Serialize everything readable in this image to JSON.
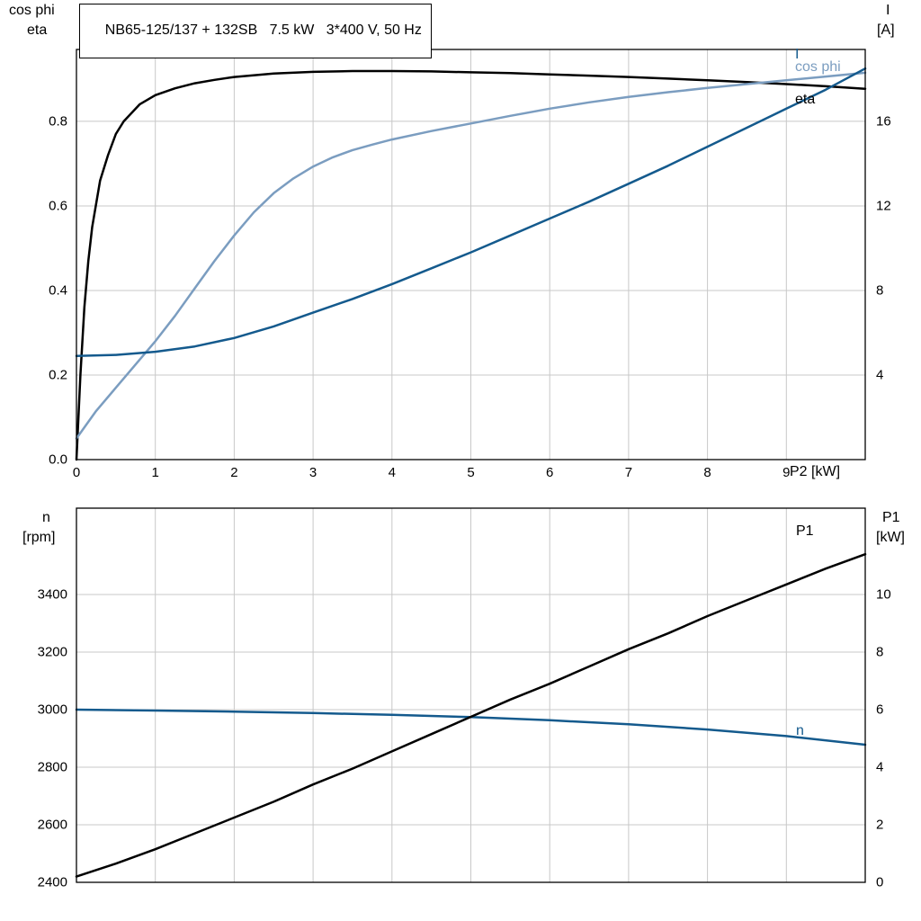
{
  "colors": {
    "grid": "#c8c8c8",
    "axis": "#000000",
    "background": "#ffffff"
  },
  "chart_data": [
    {
      "type": "line",
      "title": "NB65-125/137 + 132SB   7.5 kW   3*400 V, 50 Hz",
      "x_axis": {
        "title": "P2 [kW]",
        "range": [
          0,
          10
        ],
        "ticks": [
          [
            0,
            "0"
          ],
          [
            1,
            "1"
          ],
          [
            2,
            "2"
          ],
          [
            3,
            "3"
          ],
          [
            4,
            "4"
          ],
          [
            5,
            "5"
          ],
          [
            6,
            "6"
          ],
          [
            7,
            "7"
          ],
          [
            8,
            "8"
          ],
          [
            9,
            "9"
          ]
        ],
        "gridlines": [
          1,
          2,
          3,
          4,
          5,
          6,
          7,
          8,
          9
        ]
      },
      "left_axis": {
        "title": [
          "cos phi",
          "eta"
        ],
        "range": [
          0,
          0.97
        ],
        "ticks": [
          [
            0,
            "0.0"
          ],
          [
            0.2,
            "0.2"
          ],
          [
            0.4,
            "0.4"
          ],
          [
            0.6,
            "0.6"
          ],
          [
            0.8,
            "0.8"
          ]
        ]
      },
      "right_axis": {
        "title": [
          "I",
          "[A]"
        ],
        "range": [
          0,
          19.4
        ],
        "ticks": [
          [
            4,
            "4"
          ],
          [
            8,
            "8"
          ],
          [
            12,
            "12"
          ],
          [
            16,
            "16"
          ]
        ]
      },
      "series": [
        {
          "name": "eta",
          "axis": "left",
          "color": "#000000",
          "points": [
            [
              0,
              0
            ],
            [
              0.05,
              0.2
            ],
            [
              0.1,
              0.36
            ],
            [
              0.15,
              0.47
            ],
            [
              0.2,
              0.55
            ],
            [
              0.3,
              0.66
            ],
            [
              0.4,
              0.72
            ],
            [
              0.5,
              0.77
            ],
            [
              0.6,
              0.8
            ],
            [
              0.8,
              0.84
            ],
            [
              1,
              0.862
            ],
            [
              1.25,
              0.878
            ],
            [
              1.5,
              0.89
            ],
            [
              1.75,
              0.898
            ],
            [
              2,
              0.905
            ],
            [
              2.5,
              0.913
            ],
            [
              3,
              0.917
            ],
            [
              3.5,
              0.919
            ],
            [
              4,
              0.919
            ],
            [
              4.5,
              0.918
            ],
            [
              5,
              0.916
            ],
            [
              5.5,
              0.914
            ],
            [
              6,
              0.911
            ],
            [
              6.5,
              0.908
            ],
            [
              7,
              0.905
            ],
            [
              7.5,
              0.901
            ],
            [
              8,
              0.897
            ],
            [
              8.5,
              0.893
            ],
            [
              9,
              0.888
            ],
            [
              9.5,
              0.883
            ],
            [
              10,
              0.877
            ]
          ]
        },
        {
          "name": "cos phi",
          "axis": "left",
          "color": "#7b9dc0",
          "points": [
            [
              0,
              0.05
            ],
            [
              0.25,
              0.115
            ],
            [
              0.5,
              0.17
            ],
            [
              0.75,
              0.225
            ],
            [
              1,
              0.28
            ],
            [
              1.25,
              0.34
            ],
            [
              1.5,
              0.405
            ],
            [
              1.75,
              0.47
            ],
            [
              2,
              0.53
            ],
            [
              2.25,
              0.585
            ],
            [
              2.5,
              0.63
            ],
            [
              2.75,
              0.665
            ],
            [
              3,
              0.693
            ],
            [
              3.25,
              0.715
            ],
            [
              3.5,
              0.732
            ],
            [
              3.75,
              0.745
            ],
            [
              4,
              0.757
            ],
            [
              4.5,
              0.777
            ],
            [
              5,
              0.795
            ],
            [
              5.5,
              0.813
            ],
            [
              6,
              0.83
            ],
            [
              6.5,
              0.845
            ],
            [
              7,
              0.858
            ],
            [
              7.5,
              0.869
            ],
            [
              8,
              0.879
            ],
            [
              8.5,
              0.888
            ],
            [
              9,
              0.897
            ],
            [
              9.5,
              0.906
            ],
            [
              10,
              0.915
            ]
          ]
        },
        {
          "name": "I",
          "axis": "right",
          "color": "#145a8d",
          "points": [
            [
              0,
              4.9
            ],
            [
              0.5,
              4.95
            ],
            [
              1,
              5.1
            ],
            [
              1.5,
              5.35
            ],
            [
              2,
              5.75
            ],
            [
              2.5,
              6.3
            ],
            [
              3,
              6.95
            ],
            [
              3.5,
              7.6
            ],
            [
              4,
              8.3
            ],
            [
              4.5,
              9.05
            ],
            [
              5,
              9.8
            ],
            [
              5.5,
              10.6
            ],
            [
              6,
              11.4
            ],
            [
              6.5,
              12.2
            ],
            [
              7,
              13.05
            ],
            [
              7.5,
              13.9
            ],
            [
              8,
              14.8
            ],
            [
              8.5,
              15.7
            ],
            [
              9,
              16.6
            ],
            [
              9.5,
              17.5
            ],
            [
              10,
              18.5
            ]
          ]
        }
      ]
    },
    {
      "type": "line",
      "title": "",
      "x_axis": {
        "title": "",
        "range": [
          0,
          10
        ],
        "ticks": [],
        "gridlines": [
          1,
          2,
          3,
          4,
          5,
          6,
          7,
          8,
          9
        ]
      },
      "left_axis": {
        "title": [
          "n",
          "[rpm]"
        ],
        "range": [
          2400,
          3700
        ],
        "ticks": [
          [
            2400,
            "2400"
          ],
          [
            2600,
            "2600"
          ],
          [
            2800,
            "2800"
          ],
          [
            3000,
            "3000"
          ],
          [
            3200,
            "3200"
          ],
          [
            3400,
            "3400"
          ]
        ]
      },
      "right_axis": {
        "title": [
          "P1",
          "[kW]"
        ],
        "range": [
          0,
          13
        ],
        "ticks": [
          [
            0,
            "0"
          ],
          [
            2,
            "2"
          ],
          [
            4,
            "4"
          ],
          [
            6,
            "6"
          ],
          [
            8,
            "8"
          ],
          [
            10,
            "10"
          ]
        ]
      },
      "series": [
        {
          "name": "n",
          "axis": "left",
          "color": "#145a8d",
          "points": [
            [
              0,
              3000
            ],
            [
              1,
              2997
            ],
            [
              2,
              2993
            ],
            [
              3,
              2988
            ],
            [
              4,
              2982
            ],
            [
              5,
              2974
            ],
            [
              6,
              2963
            ],
            [
              7,
              2949
            ],
            [
              8,
              2931
            ],
            [
              9,
              2908
            ],
            [
              10,
              2878
            ]
          ]
        },
        {
          "name": "P1",
          "axis": "right",
          "color": "#000000",
          "points": [
            [
              0,
              0.2
            ],
            [
              0.5,
              0.65
            ],
            [
              1,
              1.15
            ],
            [
              1.5,
              1.7
            ],
            [
              2,
              2.25
            ],
            [
              2.5,
              2.8
            ],
            [
              3,
              3.4
            ],
            [
              3.5,
              3.95
            ],
            [
              4,
              4.55
            ],
            [
              4.5,
              5.15
            ],
            [
              5,
              5.75
            ],
            [
              5.5,
              6.35
            ],
            [
              6,
              6.9
            ],
            [
              6.5,
              7.5
            ],
            [
              7,
              8.1
            ],
            [
              7.5,
              8.65
            ],
            [
              8,
              9.25
            ],
            [
              8.5,
              9.8
            ],
            [
              9,
              10.35
            ],
            [
              9.5,
              10.9
            ],
            [
              10,
              11.4
            ]
          ]
        }
      ]
    }
  ]
}
